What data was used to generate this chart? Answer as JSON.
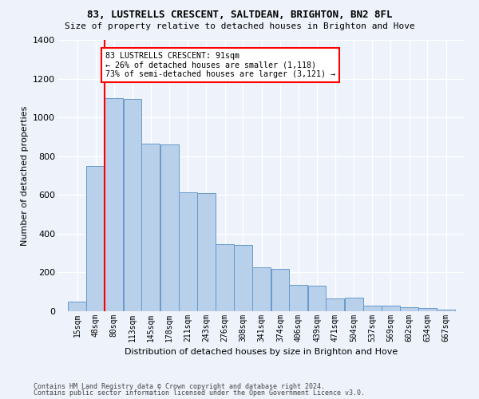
{
  "title1": "83, LUSTRELLS CRESCENT, SALTDEAN, BRIGHTON, BN2 8FL",
  "title2": "Size of property relative to detached houses in Brighton and Hove",
  "xlabel": "Distribution of detached houses by size in Brighton and Hove",
  "ylabel": "Number of detached properties",
  "footer1": "Contains HM Land Registry data © Crown copyright and database right 2024.",
  "footer2": "Contains public sector information licensed under the Open Government Licence v3.0.",
  "bin_labels": [
    "15sqm",
    "48sqm",
    "80sqm",
    "113sqm",
    "145sqm",
    "178sqm",
    "211sqm",
    "243sqm",
    "276sqm",
    "308sqm",
    "341sqm",
    "374sqm",
    "406sqm",
    "439sqm",
    "471sqm",
    "504sqm",
    "537sqm",
    "569sqm",
    "602sqm",
    "634sqm",
    "667sqm"
  ],
  "bar_heights": [
    50,
    750,
    1100,
    1095,
    865,
    860,
    615,
    610,
    345,
    340,
    225,
    220,
    135,
    130,
    65,
    68,
    30,
    28,
    20,
    15,
    10
  ],
  "bar_color": "#b8d0ea",
  "bar_edge_color": "#6699cc",
  "annotation_line1": "83 LUSTRELLS CRESCENT: 91sqm",
  "annotation_line2": "← 26% of detached houses are smaller (1,118)",
  "annotation_line3": "73% of semi-detached houses are larger (3,121) →",
  "vline_x_label": "80sqm",
  "vline_color": "red",
  "annotation_box_edge_color": "red",
  "background_color": "#eef2fb",
  "grid_color": "#ffffff",
  "ylim": [
    0,
    1400
  ],
  "bin_width": 33
}
